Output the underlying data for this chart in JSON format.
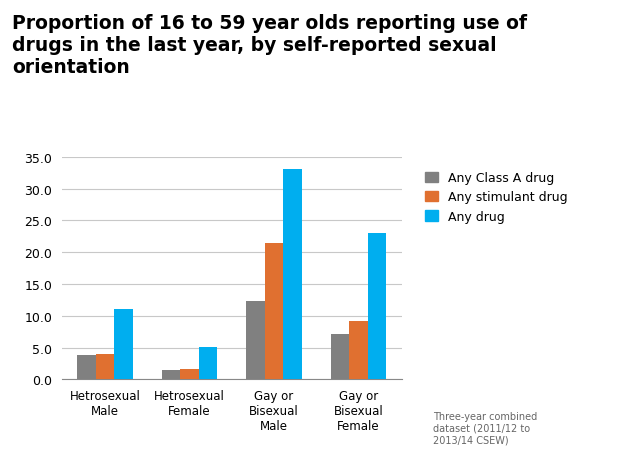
{
  "title_line1": "Proportion of 16 to 59 year olds reporting use of",
  "title_line2": "drugs in the last year, by self-reported sexual",
  "title_line3": "orientation",
  "categories": [
    "Hetrosexual\nMale",
    "Hetrosexual\nFemale",
    "Gay or\nBisexual\nMale",
    "Gay or\nBisexual\nFemale"
  ],
  "series": {
    "Any Class A drug": {
      "values": [
        3.9,
        1.5,
        12.3,
        7.2
      ],
      "color": "#808080"
    },
    "Any stimulant drug": {
      "values": [
        4.0,
        1.7,
        21.5,
        9.2
      ],
      "color": "#E07030"
    },
    "Any drug": {
      "values": [
        11.1,
        5.1,
        33.0,
        23.0
      ],
      "color": "#00AEEF"
    }
  },
  "ylim": [
    0,
    35.0
  ],
  "yticks": [
    0.0,
    5.0,
    10.0,
    15.0,
    20.0,
    25.0,
    30.0,
    35.0
  ],
  "footnote": "Three-year combined\ndataset (2011/12 to\n2013/14 CSEW)",
  "background_color": "#ffffff",
  "title_fontsize": 13.5,
  "bar_width": 0.22,
  "grid_color": "#c8c8c8"
}
